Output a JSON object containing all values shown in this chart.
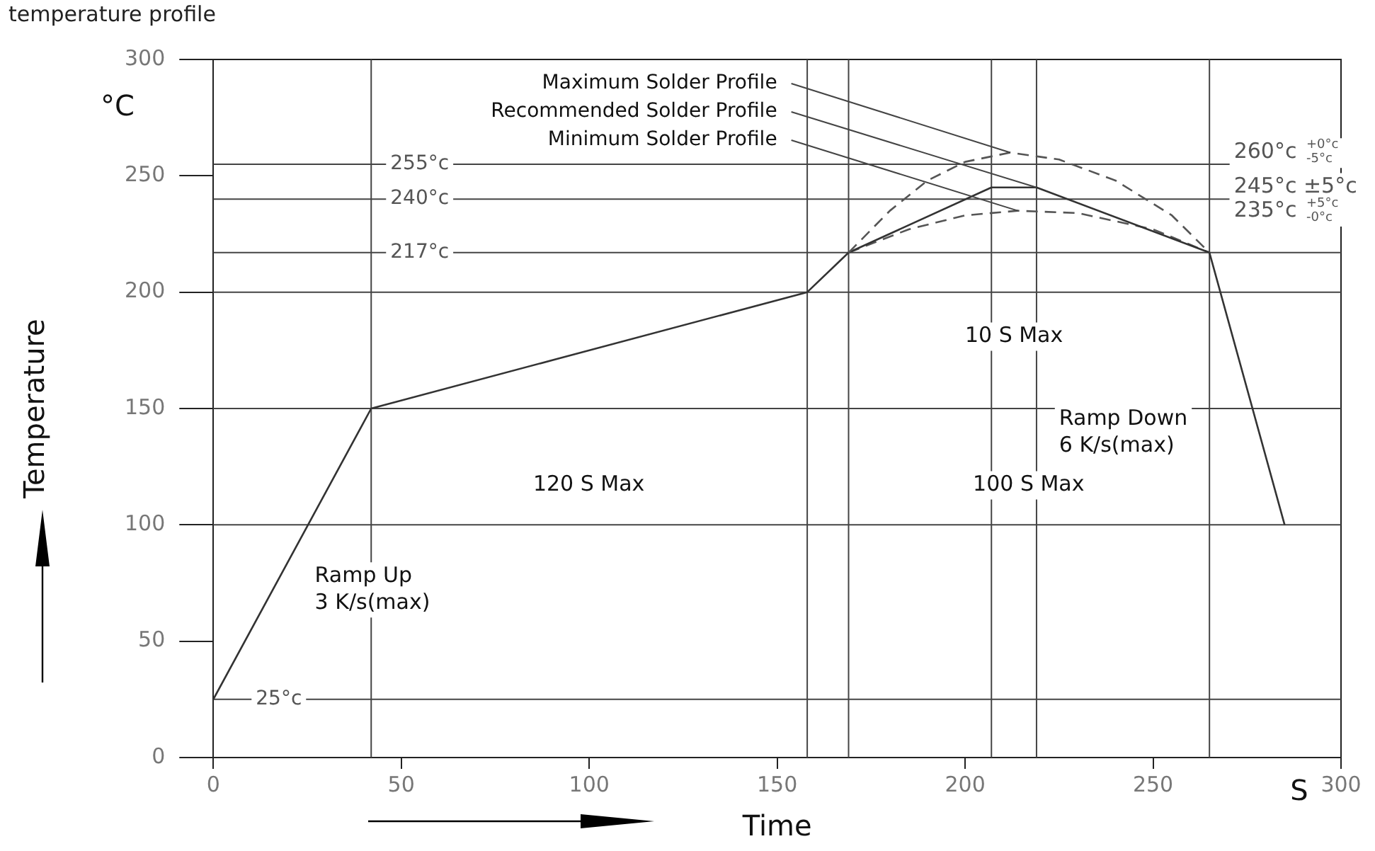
{
  "chart_data": {
    "type": "line",
    "title": "temperature profile",
    "xlabel": "Time",
    "ylabel": "Temperature",
    "xlim": [
      0,
      300
    ],
    "xticks": [
      0,
      50,
      100,
      150,
      200,
      250,
      300
    ],
    "ylim": [
      0,
      300
    ],
    "yticks": [
      0,
      50,
      100,
      150,
      200,
      250,
      300
    ],
    "grid": false,
    "legend": false,
    "marker": "none",
    "series": [
      {
        "name": "Maximum Solder Profile",
        "color": "#555555",
        "line_style": "dashed",
        "x": [
          169,
          180,
          190,
          200,
          212,
          225,
          240,
          255,
          265
        ],
        "values": [
          217,
          235,
          248,
          256,
          260,
          257,
          248,
          233,
          217
        ]
      },
      {
        "name": "Recommended Solder Profile",
        "color": "#333333",
        "line_style": "solid",
        "x": [
          0,
          42,
          158,
          169,
          207,
          219,
          265,
          285
        ],
        "values": [
          25,
          150,
          200,
          217,
          245,
          245,
          217,
          100
        ]
      },
      {
        "name": "Minimum Solder Profile",
        "color": "#555555",
        "line_style": "dashed",
        "x": [
          169,
          185,
          200,
          214,
          230,
          250,
          265
        ],
        "values": [
          217,
          227,
          233,
          235,
          234,
          227,
          217
        ]
      }
    ],
    "ref_lines": [
      {
        "axis": "y",
        "value": 255,
        "label": "255°c"
      },
      {
        "axis": "y",
        "value": 240,
        "label": "240°c"
      },
      {
        "axis": "y",
        "value": 217,
        "label": "217°c"
      },
      {
        "axis": "y",
        "value": 200
      },
      {
        "axis": "y",
        "value": 150
      },
      {
        "axis": "y",
        "value": 100
      },
      {
        "axis": "y",
        "value": 25,
        "label": "25°c"
      },
      {
        "axis": "x",
        "value": 42
      },
      {
        "axis": "x",
        "value": 158
      },
      {
        "axis": "x",
        "value": 169
      },
      {
        "axis": "x",
        "value": 207
      },
      {
        "axis": "x",
        "value": 219
      },
      {
        "axis": "x",
        "value": 265
      }
    ],
    "annotations": [
      "°C",
      "S",
      "260°c $^{+0°c}$$_{-5°c}$",
      "245°c ±5°c",
      "235°c $^{+5°c}$$_{-0°c}$",
      "120 S Max",
      "100 S Max",
      "10 S Max",
      "Ramp Up\n3 K/s(max)",
      "Ramp Down\n6 K/s(max)"
    ]
  }
}
